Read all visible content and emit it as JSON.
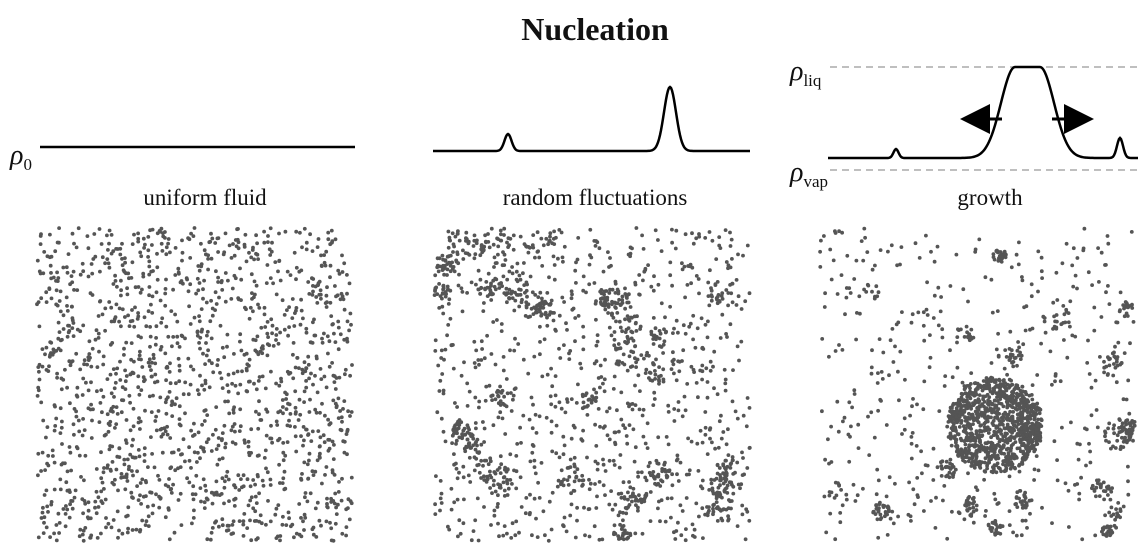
{
  "title": "Nucleation",
  "panels": [
    {
      "label": "uniform fluid",
      "density": {
        "symbol": "ρ",
        "subscript": "0"
      }
    },
    {
      "label": "random fluctuations"
    },
    {
      "label": "growth",
      "density_high": {
        "symbol": "ρ",
        "subscript": "liq"
      },
      "density_low": {
        "symbol": "ρ",
        "subscript": "vap"
      }
    }
  ]
}
